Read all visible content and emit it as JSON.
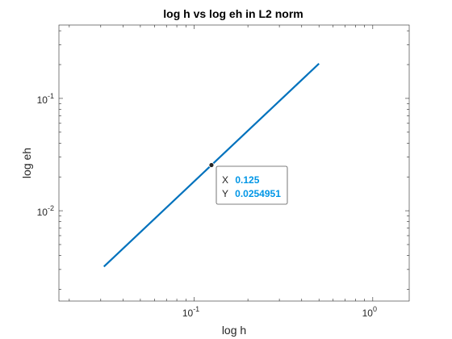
{
  "chart_data": {
    "type": "line",
    "title": "log h vs log eh in L2 norm",
    "xlabel": "log h",
    "ylabel": "log eh",
    "xscale": "log",
    "yscale": "log",
    "xlim": [
      0.0175,
      1.6
    ],
    "ylim": [
      0.00157,
      0.45
    ],
    "grid": false,
    "x_ticks": [
      {
        "value": 0.1,
        "label": "10",
        "exp": "-1"
      },
      {
        "value": 1,
        "label": "10",
        "exp": "0"
      }
    ],
    "y_ticks": [
      {
        "value": 0.01,
        "label": "10",
        "exp": "-2"
      },
      {
        "value": 0.1,
        "label": "10",
        "exp": "-1"
      }
    ],
    "series": [
      {
        "color": "#0072bd",
        "x": [
          0.03125,
          0.0625,
          0.125,
          0.25,
          0.5
        ],
        "y": [
          0.00318,
          0.009,
          0.0254951,
          0.0721,
          0.2039
        ]
      }
    ],
    "datatip": {
      "x_label": "X",
      "x_value": "0.125",
      "y_label": "Y",
      "y_value": "0.0254951",
      "x": 0.125,
      "y": 0.0254951
    }
  }
}
